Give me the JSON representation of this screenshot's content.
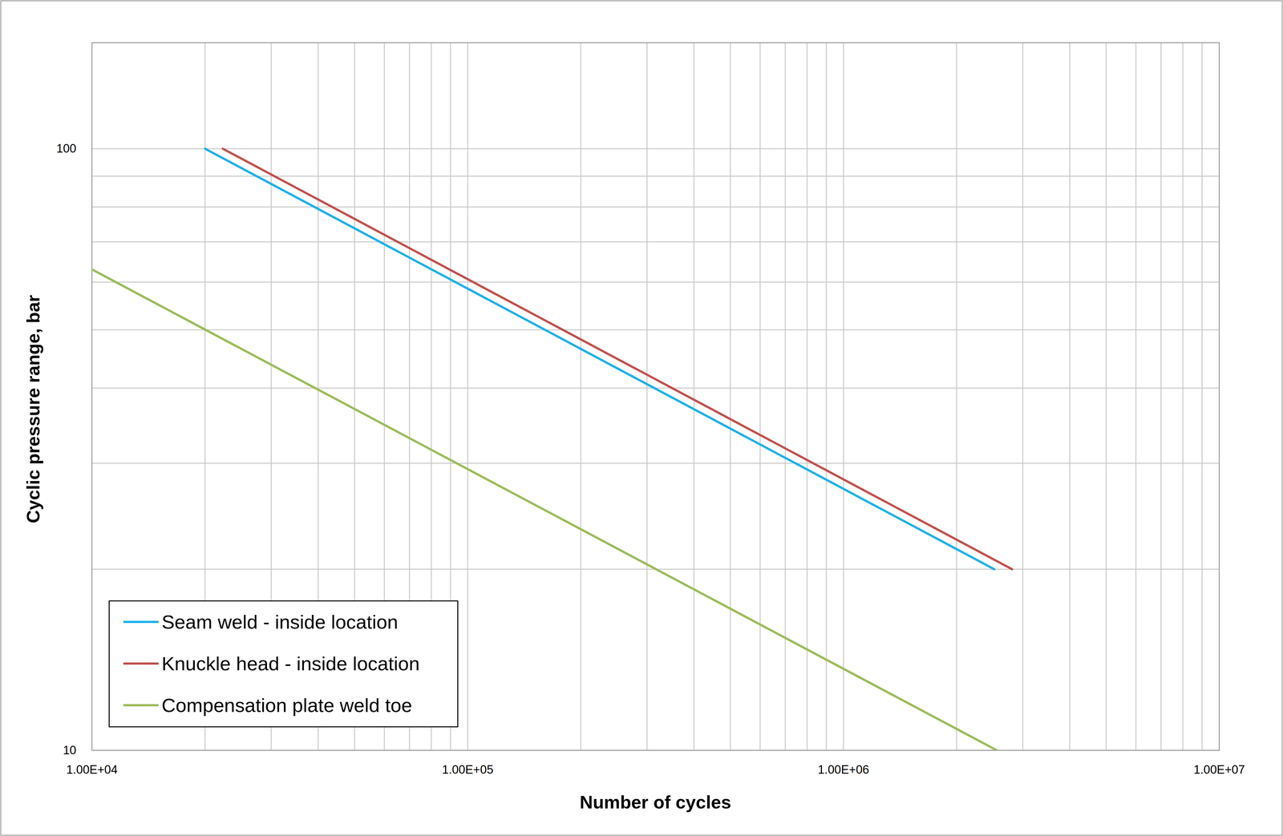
{
  "chart_data": {
    "type": "line",
    "x_label": "Number of cycles",
    "y_label": "Cyclic pressure range, bar",
    "log": true,
    "grid": true,
    "legend": "bottom-left",
    "xlim": [
      10000,
      10000000
    ],
    "ylim": [
      10,
      150
    ],
    "xticks": [
      {
        "value": 10000,
        "label": "1.00E+04"
      },
      {
        "value": 100000,
        "label": "1.00E+05"
      },
      {
        "value": 1000000,
        "label": "1.00E+06"
      },
      {
        "value": 10000000,
        "label": "1.00E+07"
      }
    ],
    "yticks": [
      10,
      100
    ],
    "series": [
      {
        "name": "Seam weld - inside location",
        "color": "#1cb0e8",
        "x": [
          20000,
          2520000
        ],
        "values": [
          100,
          20
        ]
      },
      {
        "name": "Knuckle head - inside location",
        "color": "#c0504d",
        "x": [
          22300,
          2810000
        ],
        "values": [
          100,
          20
        ]
      },
      {
        "name": "Compensation plate weld toe",
        "color": "#9bbb59",
        "x": [
          10000,
          2560000
        ],
        "values": [
          63,
          10
        ]
      }
    ]
  }
}
